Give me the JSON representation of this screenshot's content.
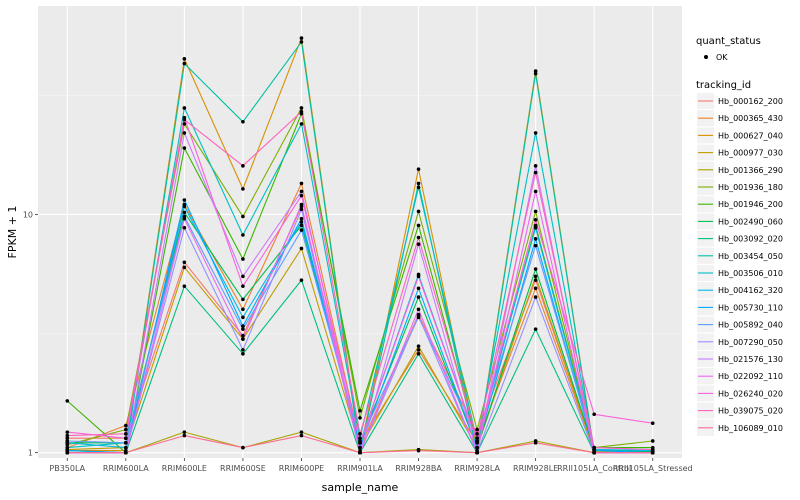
{
  "chart_data": {
    "type": "line",
    "xlabel": "sample_name",
    "ylabel": "FPKM + 1",
    "y_scale": "log10",
    "ylim": [
      0.95,
      75
    ],
    "y_ticks": [
      1,
      10
    ],
    "y_tick_labels": [
      "1",
      "10"
    ],
    "grid": true,
    "legend_position": "right",
    "panel_background": "#ebebeb",
    "categories": [
      "PB350LA",
      "RRIM600LA",
      "RRIM600LE",
      "RRIM600SE",
      "RRIM600PE",
      "RRIM901LA",
      "RRIM928BA",
      "RRIM928LA",
      "RRIM928LE",
      "RRII105LA_Control",
      "RRII105LA_Stressed"
    ],
    "quant_status_legend": {
      "title": "quant_status",
      "items": [
        "OK"
      ]
    },
    "series_legend_title": "tracking_id",
    "series": [
      {
        "name": "Hb_000162_200",
        "color": "#F8766D",
        "values": [
          1.15,
          1.15,
          6.3,
          3.1,
          10.8,
          1.05,
          3.8,
          1.2,
          5.3,
          1.03,
          1.01
        ]
      },
      {
        "name": "Hb_000365_430",
        "color": "#EA8331",
        "values": [
          1.05,
          1.3,
          11.0,
          4.0,
          13.5,
          1.1,
          2.7,
          1.1,
          4.9,
          1.02,
          1.01
        ]
      },
      {
        "name": "Hb_000627_040",
        "color": "#D89000",
        "values": [
          1.02,
          1.02,
          45.0,
          12.8,
          55.0,
          1.02,
          15.5,
          1.02,
          40.0,
          1.01,
          1.0
        ]
      },
      {
        "name": "Hb_000977_030",
        "color": "#C09B00",
        "values": [
          1.03,
          1.05,
          6.0,
          3.0,
          7.2,
          1.05,
          2.8,
          1.05,
          5.5,
          1.02,
          1.01
        ]
      },
      {
        "name": "Hb_001366_290",
        "color": "#A3A500",
        "values": [
          1.0,
          1.0,
          1.22,
          1.05,
          1.22,
          1.0,
          1.03,
          1.0,
          1.12,
          1.0,
          1.0
        ]
      },
      {
        "name": "Hb_001936_180",
        "color": "#7CAE00",
        "values": [
          1.08,
          1.25,
          24.0,
          9.8,
          28.0,
          1.4,
          10.3,
          1.25,
          10.3,
          1.05,
          1.12
        ]
      },
      {
        "name": "Hb_001946_200",
        "color": "#39B600",
        "values": [
          1.65,
          1.0,
          19.0,
          6.5,
          26.5,
          1.5,
          9.0,
          1.1,
          9.0,
          1.05,
          1.05
        ]
      },
      {
        "name": "Hb_002490_060",
        "color": "#00BB4E",
        "values": [
          1.1,
          1.1,
          10.2,
          4.4,
          9.0,
          1.1,
          4.5,
          1.05,
          5.9,
          1.03,
          1.01
        ]
      },
      {
        "name": "Hb_003092_020",
        "color": "#00BF7D",
        "values": [
          1.02,
          1.0,
          5.0,
          2.6,
          5.3,
          1.0,
          2.6,
          1.0,
          3.3,
          1.0,
          1.0
        ]
      },
      {
        "name": "Hb_003454_050",
        "color": "#00C1A3",
        "values": [
          1.0,
          1.0,
          43.0,
          24.5,
          53.0,
          1.0,
          13.5,
          1.0,
          39.0,
          1.0,
          1.0
        ]
      },
      {
        "name": "Hb_003506_010",
        "color": "#00BFC4",
        "values": [
          1.05,
          1.1,
          28.0,
          8.2,
          24.0,
          1.15,
          13.0,
          1.12,
          22.0,
          1.03,
          1.02
        ]
      },
      {
        "name": "Hb_004162_320",
        "color": "#00B8E7",
        "values": [
          1.1,
          1.05,
          10.8,
          3.7,
          9.3,
          1.1,
          5.6,
          1.12,
          8.8,
          1.03,
          1.02
        ]
      },
      {
        "name": "Hb_005730_110",
        "color": "#00A9FF",
        "values": [
          1.02,
          1.0,
          11.5,
          3.4,
          9.6,
          1.05,
          4.9,
          1.05,
          7.9,
          1.02,
          1.0
        ]
      },
      {
        "name": "Hb_005892_040",
        "color": "#619CFF",
        "values": [
          1.12,
          1.1,
          9.8,
          3.3,
          8.6,
          1.12,
          3.7,
          1.15,
          7.4,
          1.05,
          1.03
        ]
      },
      {
        "name": "Hb_007290_050",
        "color": "#9590FF",
        "values": [
          1.0,
          1.0,
          8.8,
          2.7,
          10.5,
          1.0,
          3.75,
          1.0,
          4.5,
          1.0,
          1.0
        ]
      },
      {
        "name": "Hb_021576_130",
        "color": "#C77CFF",
        "values": [
          1.0,
          1.0,
          22.0,
          5.5,
          12.5,
          1.0,
          7.5,
          1.0,
          16.0,
          1.0,
          1.0
        ]
      },
      {
        "name": "Hb_022092_110",
        "color": "#E76BF3",
        "values": [
          1.0,
          1.0,
          9.6,
          3.0,
          11.0,
          1.0,
          4.0,
          1.0,
          12.5,
          1.0,
          1.0
        ]
      },
      {
        "name": "Hb_026240_020",
        "color": "#FA62DB",
        "values": [
          1.22,
          1.15,
          25.5,
          5.0,
          12.0,
          1.1,
          5.5,
          1.12,
          9.5,
          1.45,
          1.33
        ]
      },
      {
        "name": "Hb_039075_020",
        "color": "#FF62BC",
        "values": [
          1.18,
          1.2,
          25.0,
          16.0,
          27.0,
          1.2,
          8.0,
          1.15,
          15.0,
          1.05,
          1.03
        ]
      },
      {
        "name": "Hb_106089_010",
        "color": "#FF6C91",
        "values": [
          1.0,
          1.0,
          1.18,
          1.05,
          1.18,
          1.0,
          1.02,
          1.0,
          1.1,
          1.0,
          1.0
        ]
      }
    ]
  }
}
